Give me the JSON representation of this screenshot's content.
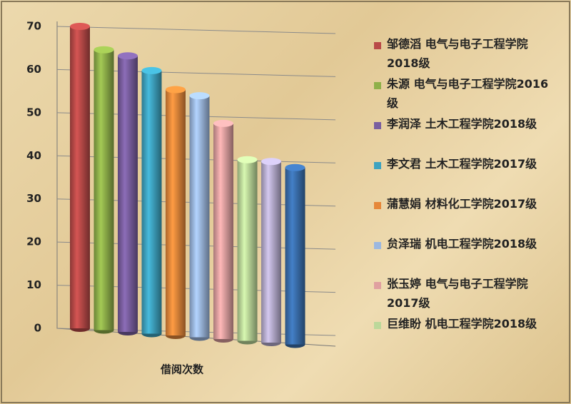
{
  "chart_data": {
    "type": "bar",
    "xlabel": "借阅次数",
    "categories": [
      "邹德滔 电气与电子工程学院2018级",
      "朱源 电气与电子工程学院2016级",
      "李润泽 土木工程学院2018级",
      "李文君 土木工程学院2017级",
      "蒲慧娟 材料化工学院2017级",
      "贠泽瑞 机电工程学院2018级",
      "张玉婷 电气与电子工程学院2017级",
      "巨维盼 机电工程学院2018级",
      null,
      null
    ],
    "values": [
      70,
      65,
      64,
      61,
      57,
      56,
      50,
      42,
      42,
      41
    ],
    "colors": [
      "#b94a48",
      "#8fb04a",
      "#7a5fa0",
      "#3ea3c0",
      "#e6883a",
      "#9cb8e0",
      "#e0a0a0",
      "#bcd89a",
      "#b8aed0",
      "#3a6fae"
    ],
    "ylim": [
      0,
      70
    ],
    "yticks": [
      0,
      10,
      20,
      30,
      40,
      50,
      60,
      70
    ],
    "grid": true
  }
}
